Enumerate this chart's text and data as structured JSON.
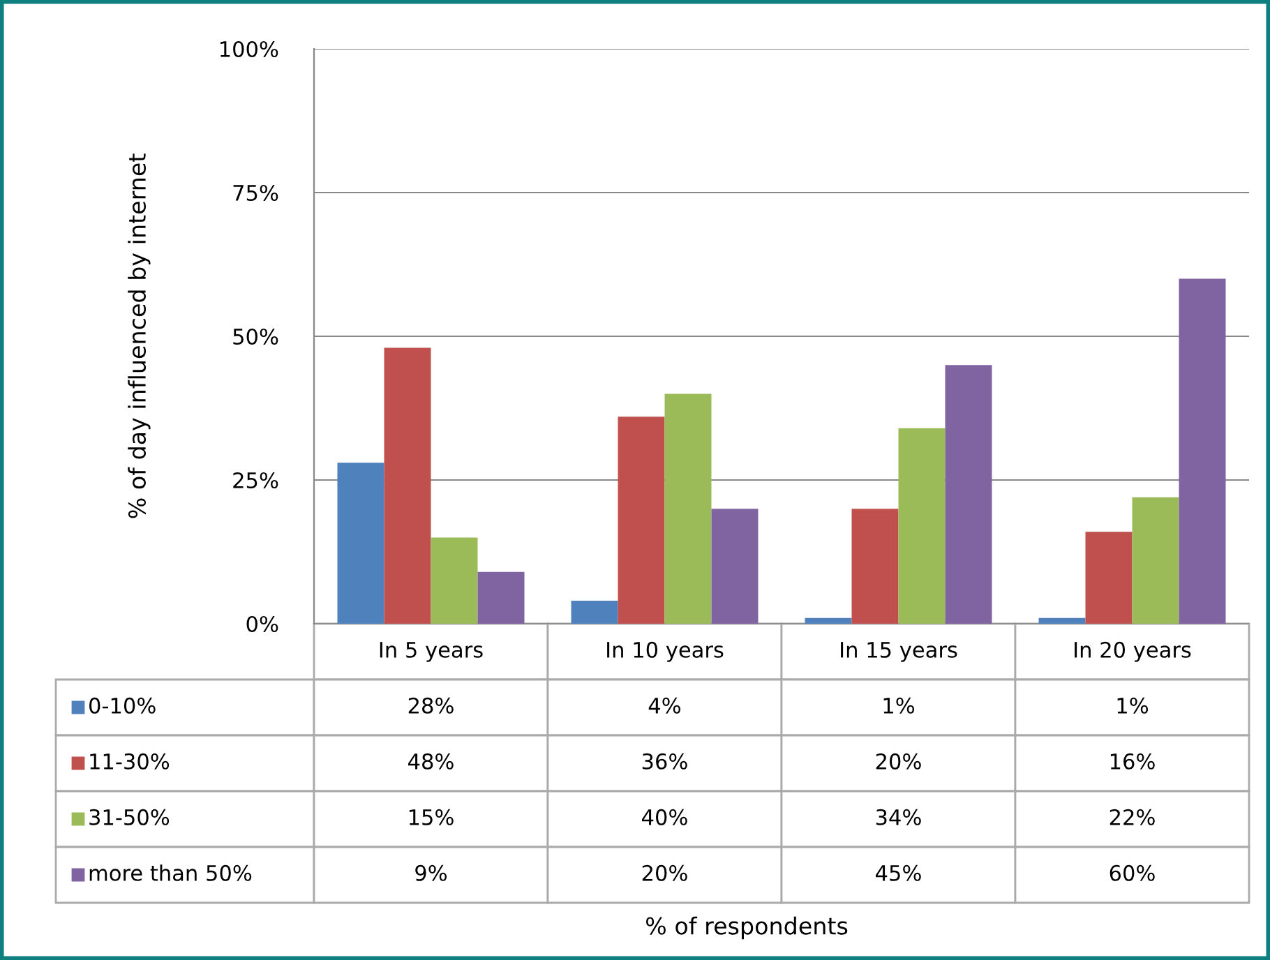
{
  "chart_data": {
    "type": "bar",
    "annotations": [
      "% of respondents"
    ],
    "legend": "bottom left",
    "ylabel": "% of day influenced by internet",
    "categories": [
      "In 5 years",
      "In 10 years",
      "In 15 years",
      "In 20 years"
    ],
    "series": [
      {
        "name": "0-10%",
        "color": "#4f81bd",
        "values": [
          28,
          4,
          1,
          1
        ],
        "value_labels": [
          "28%",
          "4%",
          "1%",
          "1%"
        ]
      },
      {
        "name": "11-30%",
        "color": "#c0504d",
        "values": [
          48,
          36,
          20,
          16
        ],
        "value_labels": [
          "48%",
          "36%",
          "20%",
          "16%"
        ]
      },
      {
        "name": "31-50%",
        "color": "#9bbb59",
        "values": [
          15,
          40,
          34,
          22
        ],
        "value_labels": [
          "15%",
          "40%",
          "34%",
          "22%"
        ]
      },
      {
        "name": "more than 50%",
        "color": "#8064a2",
        "values": [
          9,
          20,
          45,
          60
        ],
        "value_labels": [
          "9%",
          "20%",
          "45%",
          "60%"
        ]
      }
    ],
    "ylim": [
      0,
      100
    ],
    "yticks": [
      {
        "value": 0,
        "label": "0%"
      },
      {
        "value": 25,
        "label": "25%"
      },
      {
        "value": 50,
        "label": "50%"
      },
      {
        "value": 75,
        "label": "75%"
      },
      {
        "value": 100,
        "label": "100%"
      }
    ],
    "grid": "y"
  }
}
